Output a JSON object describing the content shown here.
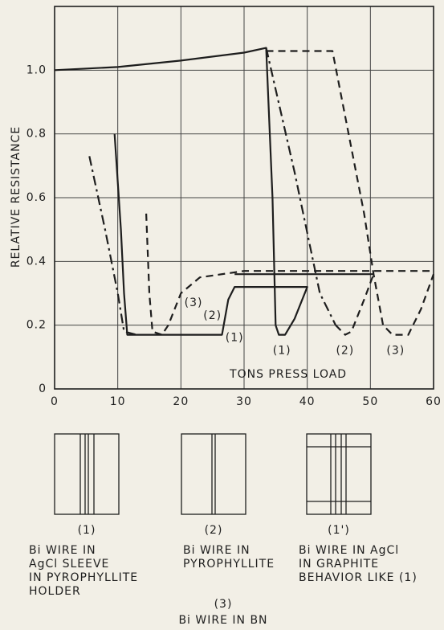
{
  "chart_data": {
    "type": "line",
    "xlabel": "TONS PRESS LOAD",
    "ylabel": "RELATIVE RESISTANCE",
    "xlim": [
      0,
      60
    ],
    "ylim": [
      0,
      1.2
    ],
    "xticks": [
      0,
      10,
      20,
      30,
      40,
      50,
      60
    ],
    "yticks": [
      0,
      0.2,
      0.4,
      0.6,
      0.8,
      {
        "value": 1,
        "label": "1.0"
      }
    ],
    "grid": true,
    "series": [
      {
        "style": "solid",
        "color": "#1e1e1e",
        "x": [
          0,
          10,
          20,
          30,
          33.5,
          34.5,
          35,
          35.5,
          36.5,
          38,
          40,
          28.5,
          27.5,
          26.5,
          20,
          11.5,
          11,
          10.5,
          9.5
        ],
        "values": [
          1.0,
          1.01,
          1.03,
          1.055,
          1.07,
          0.6,
          0.2,
          0.17,
          0.17,
          0.22,
          0.32,
          0.32,
          0.28,
          0.17,
          0.17,
          0.17,
          0.3,
          0.5,
          0.8
        ]
      },
      {
        "style": "solid",
        "color": "#1e1e1e",
        "x": [
          28.5,
          40,
          50.5
        ],
        "values": [
          0.36,
          0.36,
          0.36
        ]
      },
      {
        "style": "dashdot",
        "color": "#1e1e1e",
        "x": [
          5.5,
          8,
          10,
          11,
          13,
          null,
          33.5,
          38,
          42,
          44.5
        ],
        "values": [
          0.73,
          0.5,
          0.3,
          0.18,
          0.17,
          null,
          1.07,
          0.68,
          0.3,
          0.2
        ]
      },
      {
        "style": "dashed",
        "color": "#1e1e1e",
        "x": [
          33.5,
          44,
          49,
          50.5,
          52,
          53.5,
          56,
          58,
          60,
          null,
          44.5,
          46,
          47,
          49,
          50.5,
          null,
          14.5,
          15,
          15.5,
          17,
          18,
          20,
          23,
          30,
          60
        ],
        "values": [
          1.06,
          1.06,
          0.55,
          0.36,
          0.2,
          0.17,
          0.17,
          0.25,
          0.36,
          null,
          0.2,
          0.17,
          0.18,
          0.28,
          0.36,
          null,
          0.55,
          0.3,
          0.18,
          0.17,
          0.2,
          0.3,
          0.35,
          0.37,
          0.37
        ]
      }
    ],
    "annotations": [
      {
        "text": "(1)",
        "x": 28.5,
        "y": 0.16
      },
      {
        "text": "(1)",
        "x": 36,
        "y": 0.12
      },
      {
        "text": "(2)",
        "x": 46,
        "y": 0.12
      },
      {
        "text": "(3)",
        "x": 54,
        "y": 0.12
      },
      {
        "text": "(3)",
        "x": 22,
        "y": 0.27
      },
      {
        "text": "(2)",
        "x": 25,
        "y": 0.23
      }
    ]
  },
  "figures": [
    {
      "label": "(1)",
      "caption": [
        "Bi WIRE IN",
        "AgCl SLEEVE",
        "IN PYROPHYLLITE",
        "HOLDER"
      ]
    },
    {
      "label": "(2)",
      "caption": [
        "Bi WIRE IN",
        "PYROPHYLLITE"
      ]
    },
    {
      "label": "(1')",
      "caption": [
        "Bi WIRE IN AgCl",
        "IN GRAPHITE",
        "BEHAVIOR LIKE (1)"
      ]
    },
    {
      "label": "(3)",
      "caption": [
        "Bi WIRE IN BN"
      ]
    }
  ]
}
